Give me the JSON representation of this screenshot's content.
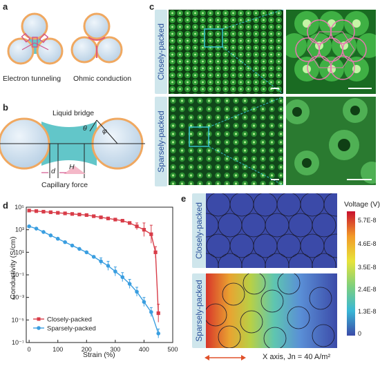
{
  "panel_a": {
    "label": "a",
    "left_caption": "Electron tunneling",
    "right_caption": "Ohmic conduction"
  },
  "panel_b": {
    "label": "b",
    "liquid_bridge": "Liquid bridge",
    "theta": "θ",
    "phi": "φ",
    "d": "d",
    "H": "H",
    "capillary_force": "Capillary force"
  },
  "panel_c": {
    "label": "c",
    "top_label": "Closely-packed",
    "bottom_label": "Sparsely-packed"
  },
  "panel_e": {
    "label": "e",
    "top_label": "Closely-packed",
    "bottom_label": "Sparsely-packed",
    "colorbar_title": "Voltage (V)",
    "colorbar_ticks": [
      "5.7E-8",
      "4.6E-8",
      "3.5E-8",
      "2.4E-8",
      "1.3E-8",
      "0"
    ],
    "axis_note": "X axis, Jn = 40 A/m²"
  },
  "colors": {
    "sphere_fill": "#c7dcec",
    "sphere_rim": "#f0a860",
    "bridge": "#62c6c9",
    "micro_green": "#1f8f2a",
    "series_close": "#d83c48",
    "series_sparse": "#3a9ee0"
  },
  "chart_data": {
    "type": "line",
    "panel_label": "d",
    "xlabel": "Strain (%)",
    "ylabel": "Conductivity (S/cm)",
    "xlim": [
      -10,
      500
    ],
    "ylim_log10": [
      -7,
      5
    ],
    "x_ticks": [
      "0",
      "100",
      "200",
      "300",
      "400",
      "500"
    ],
    "y_ticks": [
      "10⁵",
      "10³",
      "10¹",
      "10⁻¹",
      "10⁻³",
      "10⁻⁵",
      "10⁻⁷"
    ],
    "legend_position": "bottom-left",
    "series": [
      {
        "name": "Closely-packed",
        "marker": "square",
        "x": [
          0,
          25,
          50,
          75,
          100,
          125,
          150,
          175,
          200,
          225,
          250,
          275,
          300,
          325,
          350,
          375,
          400,
          425,
          440,
          450
        ],
        "log10_y": [
          4.7,
          4.65,
          4.6,
          4.55,
          4.5,
          4.45,
          4.4,
          4.35,
          4.3,
          4.2,
          4.1,
          4.0,
          3.9,
          3.8,
          3.6,
          3.3,
          3.0,
          2.6,
          1.0,
          -4.4
        ],
        "log10_err": [
          0,
          0,
          0,
          0,
          0,
          0,
          0,
          0,
          0,
          0,
          0,
          0,
          0,
          0,
          0,
          0.3,
          0.6,
          0.8,
          0.5,
          0.8
        ]
      },
      {
        "name": "Sparsely-packed",
        "marker": "circle",
        "x": [
          0,
          25,
          50,
          75,
          100,
          125,
          150,
          175,
          200,
          225,
          250,
          275,
          300,
          325,
          350,
          375,
          400,
          425,
          450
        ],
        "log10_y": [
          3.3,
          3.1,
          2.8,
          2.5,
          2.2,
          1.9,
          1.6,
          1.3,
          1.0,
          0.6,
          0.2,
          -0.2,
          -0.7,
          -1.2,
          -1.8,
          -2.5,
          -3.4,
          -4.3,
          -6.2
        ],
        "log10_err": [
          0,
          0,
          0,
          0,
          0,
          0,
          0,
          0,
          0,
          0,
          0.3,
          0.4,
          0.4,
          0.4,
          0.4,
          0.4,
          0.4,
          0.4,
          0.4
        ]
      }
    ]
  }
}
